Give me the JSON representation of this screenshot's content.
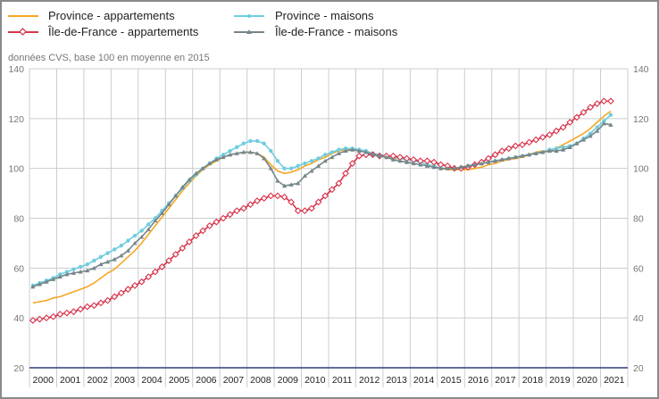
{
  "chart_data": {
    "type": "line",
    "subtitle": "données CVS, base 100 en moyenne en 2015",
    "ylim": [
      20,
      140
    ],
    "yticks": [
      20,
      40,
      60,
      80,
      100,
      120,
      140
    ],
    "grid": true,
    "legend_position": "top",
    "x_tick_labels": [
      "2000",
      "2001",
      "2002",
      "2003",
      "2004",
      "2005",
      "2006",
      "2007",
      "2008",
      "2009",
      "2010",
      "2011",
      "2012",
      "2013",
      "2014",
      "2015",
      "2016",
      "2017",
      "2018",
      "2019",
      "2020",
      "2021"
    ],
    "x_start": "2000-Q1",
    "x_frequency": "quarterly",
    "series": [
      {
        "name": "Province - appartements",
        "color": "#f5a623",
        "marker": "none",
        "values": [
          46,
          46.5,
          47,
          48,
          48.5,
          49.5,
          50.5,
          51.5,
          52.5,
          54,
          56,
          58,
          59.5,
          62,
          64.5,
          67,
          70,
          73.5,
          77,
          80.5,
          84,
          87.5,
          91,
          94,
          97,
          99.5,
          101.5,
          103,
          104.5,
          105.5,
          106,
          106.5,
          106.5,
          106,
          104.5,
          101.5,
          99,
          98,
          98.5,
          99.5,
          101,
          102,
          103.5,
          104.5,
          106,
          107,
          107.5,
          108,
          107.5,
          107,
          106,
          105.5,
          104.5,
          104,
          104,
          103.5,
          103.5,
          102.5,
          101.5,
          100.5,
          100,
          99.5,
          99.5,
          99.5,
          99.5,
          100,
          100.5,
          101.5,
          102,
          103,
          103.5,
          104,
          104.5,
          105.5,
          106.5,
          107,
          107,
          108,
          109.5,
          111,
          112.5,
          114,
          116,
          118.5,
          121,
          123
        ]
      },
      {
        "name": "Province - maisons",
        "color": "#6fcde0",
        "marker": "dot",
        "values": [
          53,
          54,
          55,
          56,
          57.5,
          58.5,
          59.5,
          60.5,
          61.5,
          63,
          64.5,
          66,
          67.5,
          69,
          71,
          73,
          75,
          77.5,
          80,
          83,
          86,
          89,
          92,
          95,
          97.5,
          100,
          102,
          104,
          105.5,
          107,
          108.5,
          110,
          111,
          111,
          110,
          107,
          103,
          100,
          100,
          101,
          102,
          103,
          104,
          105.5,
          106.5,
          107.5,
          108,
          108,
          107.5,
          107,
          106,
          105.5,
          105,
          104.5,
          104,
          103.5,
          103,
          102.5,
          101.5,
          101,
          100,
          100,
          100,
          100.5,
          101,
          101.5,
          102,
          102.5,
          103,
          103.5,
          104,
          104.5,
          105,
          105.5,
          106,
          106.5,
          107.5,
          108,
          108.5,
          109,
          110,
          112,
          114,
          116.5,
          119,
          121.5
        ]
      },
      {
        "name": "Île-de-France - appartements",
        "color": "#d9324a",
        "marker": "diamond",
        "values": [
          39,
          39.5,
          40,
          40.5,
          41.5,
          42,
          42.5,
          43.5,
          44.5,
          45,
          46,
          47,
          48.5,
          50,
          51.5,
          53,
          54.5,
          56.5,
          58.5,
          60.5,
          63,
          65.5,
          68,
          70.5,
          73,
          75,
          77,
          78.5,
          80,
          81.5,
          83,
          84,
          85.5,
          87,
          88,
          89,
          89,
          88.5,
          86.5,
          83,
          83,
          84,
          86.5,
          89,
          91.5,
          94,
          98,
          102,
          105,
          105.5,
          105.5,
          105,
          105,
          105,
          104.5,
          104,
          103.5,
          103,
          103,
          102.5,
          101.5,
          101,
          100,
          100,
          100.5,
          101.5,
          102.5,
          104,
          105.5,
          107,
          108,
          109,
          109.5,
          110.5,
          111.5,
          112.5,
          113.5,
          115,
          116.5,
          118.5,
          120.5,
          122.5,
          124.5,
          126,
          127,
          127
        ]
      },
      {
        "name": "Île-de-France - maisons",
        "color": "#75868a",
        "marker": "triangle",
        "values": [
          52.5,
          53.5,
          54.5,
          55.5,
          56.5,
          57.5,
          58,
          58.5,
          59,
          60,
          61.5,
          62.5,
          63.5,
          65,
          67,
          70,
          72.5,
          75.5,
          79,
          82,
          85.5,
          89,
          92.5,
          95.5,
          98,
          100,
          102,
          103.5,
          104.5,
          105.5,
          106,
          106.5,
          106.5,
          106,
          104,
          100,
          95,
          93,
          93.5,
          94,
          97,
          99,
          101,
          103,
          104.5,
          106,
          107,
          107.5,
          107,
          106.5,
          105.5,
          105,
          104.5,
          103.5,
          103,
          102.5,
          102,
          101.5,
          101,
          100.5,
          100,
          100,
          100,
          100.5,
          101,
          101.5,
          102,
          102.5,
          103,
          103.5,
          104,
          104.5,
          105,
          105.5,
          106,
          106.5,
          107,
          107,
          107.5,
          108.5,
          110,
          111.5,
          113,
          115,
          118,
          117.5
        ]
      }
    ]
  }
}
